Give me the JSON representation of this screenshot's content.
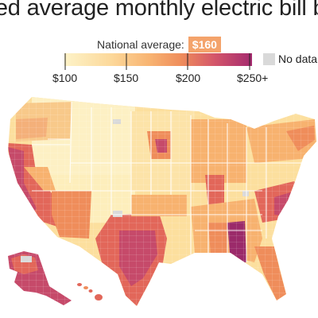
{
  "title": "ted average monthly electric bill b",
  "national_average": {
    "label": "National average:",
    "value": "$160"
  },
  "legend": {
    "ticks": [
      "$100",
      "$150",
      "$200",
      "$250+"
    ],
    "no_data_label": "No data",
    "colors": [
      "#fdedbe",
      "#fbd28c",
      "#f7b26f",
      "#ef8d5b",
      "#e2675a",
      "#c64a6a",
      "#9b2a6a"
    ],
    "no_data_color": "#d9d9d9"
  }
}
